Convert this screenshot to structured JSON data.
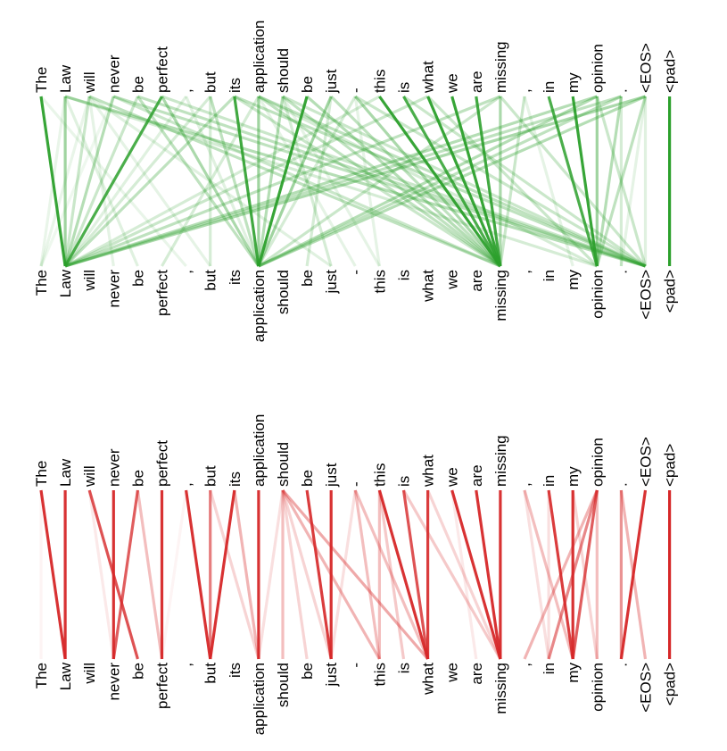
{
  "tokens": [
    "The",
    "Law",
    "will",
    "never",
    "be",
    "perfect",
    ",",
    "but",
    "its",
    "application",
    "should",
    "be",
    "just",
    "-",
    "this",
    "is",
    "what",
    "we",
    "are",
    "missing",
    ",",
    "in",
    "my",
    "opinion",
    ".",
    "<EOS>",
    "<pad>"
  ],
  "colors": {
    "top": "#2ca02c",
    "bottom": "#d62728"
  },
  "chart_data": [
    {
      "type": "attention-links",
      "color": "#2ca02c",
      "links": [
        [
          0,
          1,
          0.95
        ],
        [
          1,
          1,
          0.45
        ],
        [
          2,
          1,
          0.25
        ],
        [
          3,
          1,
          0.35
        ],
        [
          4,
          1,
          0.25
        ],
        [
          5,
          1,
          0.85
        ],
        [
          6,
          1,
          0.15
        ],
        [
          7,
          1,
          0.2
        ],
        [
          8,
          1,
          0.3
        ],
        [
          2,
          0,
          0.1
        ],
        [
          3,
          0,
          0.08
        ],
        [
          1,
          0,
          0.1
        ],
        [
          8,
          9,
          0.9
        ],
        [
          9,
          9,
          0.45
        ],
        [
          10,
          9,
          0.35
        ],
        [
          11,
          9,
          0.95
        ],
        [
          12,
          9,
          0.45
        ],
        [
          7,
          9,
          0.3
        ],
        [
          5,
          9,
          0.4
        ],
        [
          4,
          9,
          0.3
        ],
        [
          13,
          9,
          0.2
        ],
        [
          6,
          9,
          0.15
        ],
        [
          14,
          19,
          0.95
        ],
        [
          15,
          19,
          0.85
        ],
        [
          16,
          19,
          0.95
        ],
        [
          17,
          19,
          0.95
        ],
        [
          18,
          19,
          0.9
        ],
        [
          19,
          19,
          0.4
        ],
        [
          20,
          19,
          0.25
        ],
        [
          13,
          19,
          0.4
        ],
        [
          12,
          19,
          0.3
        ],
        [
          11,
          19,
          0.35
        ],
        [
          10,
          19,
          0.3
        ],
        [
          2,
          19,
          0.3
        ],
        [
          3,
          19,
          0.25
        ],
        [
          9,
          19,
          0.3
        ],
        [
          8,
          19,
          0.25
        ],
        [
          21,
          23,
          0.85
        ],
        [
          22,
          23,
          0.95
        ],
        [
          23,
          23,
          0.45
        ],
        [
          24,
          23,
          0.35
        ],
        [
          25,
          23,
          0.3
        ],
        [
          16,
          23,
          0.25
        ],
        [
          1,
          23,
          0.2
        ],
        [
          9,
          23,
          0.2
        ],
        [
          1,
          25,
          0.35
        ],
        [
          3,
          25,
          0.3
        ],
        [
          4,
          25,
          0.3
        ],
        [
          5,
          25,
          0.25
        ],
        [
          8,
          25,
          0.3
        ],
        [
          9,
          25,
          0.3
        ],
        [
          10,
          25,
          0.25
        ],
        [
          13,
          25,
          0.25
        ],
        [
          15,
          25,
          0.25
        ],
        [
          23,
          25,
          0.25
        ],
        [
          19,
          25,
          0.25
        ],
        [
          25,
          25,
          0.15
        ],
        [
          23,
          1,
          0.35
        ],
        [
          24,
          1,
          0.3
        ],
        [
          25,
          1,
          0.4
        ],
        [
          19,
          1,
          0.3
        ],
        [
          16,
          1,
          0.25
        ],
        [
          14,
          1,
          0.2
        ],
        [
          23,
          9,
          0.35
        ],
        [
          25,
          9,
          0.35
        ],
        [
          24,
          9,
          0.3
        ],
        [
          19,
          9,
          0.25
        ],
        [
          0,
          6,
          0.1
        ],
        [
          1,
          4,
          0.15
        ],
        [
          2,
          3,
          0.12
        ],
        [
          9,
          5,
          0.2
        ],
        [
          10,
          12,
          0.2
        ],
        [
          12,
          11,
          0.2
        ],
        [
          13,
          14,
          0.12
        ],
        [
          20,
          22,
          0.12
        ],
        [
          24,
          24,
          0.2
        ],
        [
          25,
          24,
          0.12
        ],
        [
          7,
          7,
          0.2
        ],
        [
          2,
          7,
          0.12
        ],
        [
          2,
          12,
          0.15
        ],
        [
          9,
          13,
          0.12
        ],
        [
          10,
          14,
          0.12
        ],
        [
          26,
          26,
          1.0
        ]
      ]
    },
    {
      "type": "attention-links",
      "color": "#d62728",
      "links": [
        [
          0,
          1,
          0.95
        ],
        [
          1,
          1,
          0.95
        ],
        [
          2,
          4,
          0.8
        ],
        [
          3,
          3,
          0.95
        ],
        [
          4,
          3,
          0.75
        ],
        [
          5,
          5,
          0.95
        ],
        [
          4,
          5,
          0.3
        ],
        [
          2,
          3,
          0.1
        ],
        [
          0,
          0,
          0.05
        ],
        [
          6,
          5,
          0.05
        ],
        [
          7,
          7,
          0.6
        ],
        [
          8,
          7,
          0.95
        ],
        [
          6,
          7,
          0.95
        ],
        [
          7,
          9,
          0.2
        ],
        [
          8,
          9,
          0.35
        ],
        [
          9,
          9,
          0.95
        ],
        [
          10,
          10,
          0.3
        ],
        [
          10,
          9,
          0.15
        ],
        [
          10,
          11,
          0.2
        ],
        [
          10,
          12,
          0.2
        ],
        [
          10,
          14,
          0.35
        ],
        [
          10,
          16,
          0.4
        ],
        [
          11,
          12,
          0.9
        ],
        [
          12,
          12,
          0.95
        ],
        [
          13,
          14,
          0.3
        ],
        [
          13,
          16,
          0.3
        ],
        [
          14,
          16,
          0.95
        ],
        [
          14,
          14,
          0.3
        ],
        [
          15,
          16,
          0.8
        ],
        [
          16,
          16,
          0.9
        ],
        [
          13,
          12,
          0.15
        ],
        [
          14,
          15,
          0.25
        ],
        [
          17,
          19,
          0.95
        ],
        [
          18,
          19,
          0.95
        ],
        [
          19,
          19,
          0.95
        ],
        [
          15,
          19,
          0.25
        ],
        [
          16,
          19,
          0.2
        ],
        [
          17,
          18,
          0.1
        ],
        [
          20,
          22,
          0.3
        ],
        [
          20,
          21,
          0.15
        ],
        [
          21,
          22,
          0.9
        ],
        [
          22,
          22,
          0.95
        ],
        [
          23,
          22,
          0.75
        ],
        [
          23,
          23,
          0.3
        ],
        [
          23,
          21,
          0.55
        ],
        [
          23,
          20,
          0.35
        ],
        [
          24,
          24,
          0.5
        ],
        [
          24,
          25,
          0.35
        ],
        [
          25,
          24,
          0.95
        ],
        [
          22,
          23,
          0.2
        ],
        [
          21,
          21,
          0.15
        ],
        [
          26,
          26,
          1.0
        ]
      ]
    }
  ]
}
